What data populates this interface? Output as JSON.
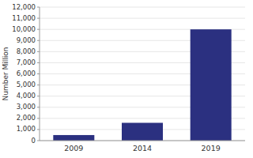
{
  "chart_data": {
    "type": "bar",
    "categories": [
      "2009",
      "2014",
      "2019"
    ],
    "values": [
      500,
      1600,
      10000
    ],
    "color": "#2b3080",
    "ylabel": "Number Million",
    "ylim": [
      0,
      12000
    ],
    "yticks": [
      0,
      {
        "value": 1000,
        "label": "1,000"
      },
      {
        "value": 2000,
        "label": "2,000"
      },
      {
        "value": 3000,
        "label": "3,000"
      },
      {
        "value": 4000,
        "label": "4,000"
      },
      {
        "value": 5000,
        "label": "5,000"
      },
      {
        "value": 6000,
        "label": "6,000"
      },
      {
        "value": 7000,
        "label": "7,000"
      },
      {
        "value": 8000,
        "label": "8,000"
      },
      {
        "value": 9000,
        "label": "9,000"
      },
      {
        "value": 10000,
        "label": "10,000"
      },
      {
        "value": 11000,
        "label": "11,000"
      },
      {
        "value": 12000,
        "label": "12,000"
      }
    ],
    "grid": true
  }
}
